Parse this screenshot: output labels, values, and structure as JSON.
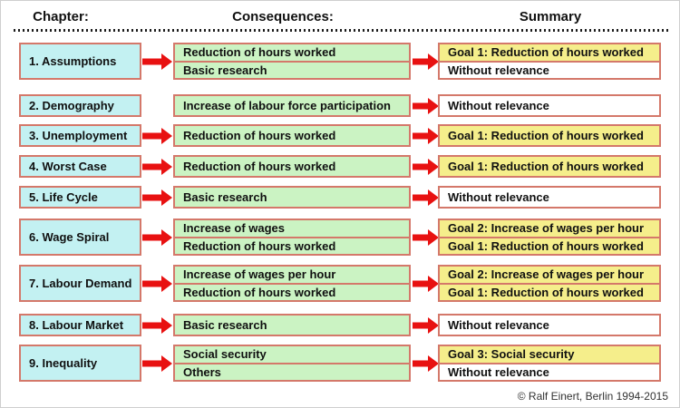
{
  "header": {
    "columns": [
      {
        "label": "Chapter:"
      },
      {
        "label": "Consequences:"
      },
      {
        "label": "Summary"
      }
    ]
  },
  "colors": {
    "chapter_fill": "#c3f1f2",
    "consequence_fill": "#cbf3c3",
    "goal_fill": "#f5ee8b",
    "plain_fill": "#ffffff",
    "box_border": "#d4786a",
    "arrow": "#e81111"
  },
  "rows": [
    {
      "chapter": "1. Assumptions",
      "arrow_in": true,
      "consequences": [
        "Reduction of hours worked",
        "Basic research"
      ],
      "arrow_out": true,
      "summary": [
        {
          "text": "Goal 1: Reduction of hours worked",
          "goal": true
        },
        {
          "text": "Without relevance",
          "goal": false
        }
      ]
    },
    {
      "chapter": "2. Demography",
      "arrow_in": false,
      "consequences": [
        "Increase of labour force participation"
      ],
      "arrow_out": true,
      "summary": [
        {
          "text": "Without relevance",
          "goal": false
        }
      ]
    },
    {
      "chapter": "3. Unemployment",
      "arrow_in": true,
      "consequences": [
        "Reduction of hours worked"
      ],
      "arrow_out": true,
      "summary": [
        {
          "text": "Goal 1: Reduction of hours worked",
          "goal": true
        }
      ]
    },
    {
      "chapter": "4. Worst Case",
      "arrow_in": true,
      "consequences": [
        "Reduction of hours worked"
      ],
      "arrow_out": true,
      "summary": [
        {
          "text": "Goal 1: Reduction of hours worked",
          "goal": true
        }
      ]
    },
    {
      "chapter": "5. Life Cycle",
      "arrow_in": true,
      "consequences": [
        "Basic research"
      ],
      "arrow_out": true,
      "summary": [
        {
          "text": "Without relevance",
          "goal": false
        }
      ]
    },
    {
      "chapter": "6. Wage Spiral",
      "arrow_in": true,
      "consequences": [
        "Increase of wages",
        "Reduction of hours worked"
      ],
      "arrow_out": true,
      "summary": [
        {
          "text": "Goal 2: Increase of wages per hour",
          "goal": true
        },
        {
          "text": "Goal 1: Reduction of hours worked",
          "goal": true
        }
      ]
    },
    {
      "chapter": "7. Labour Demand",
      "arrow_in": true,
      "consequences": [
        "Increase of wages per hour",
        "Reduction of hours worked"
      ],
      "arrow_out": true,
      "summary": [
        {
          "text": "Goal 2: Increase of wages per hour",
          "goal": true
        },
        {
          "text": "Goal 1: Reduction of hours worked",
          "goal": true
        }
      ]
    },
    {
      "chapter": "8. Labour Market",
      "arrow_in": true,
      "consequences": [
        "Basic research"
      ],
      "arrow_out": true,
      "summary": [
        {
          "text": "Without relevance",
          "goal": false
        }
      ]
    },
    {
      "chapter": "9. Inequality",
      "arrow_in": true,
      "consequences": [
        "Social security",
        "Others"
      ],
      "arrow_out": true,
      "summary": [
        {
          "text": "Goal 3: Social security",
          "goal": true
        },
        {
          "text": "Without relevance",
          "goal": false
        }
      ]
    }
  ],
  "footer": {
    "copyright": "© Ralf Einert, Berlin 1994-2015"
  }
}
